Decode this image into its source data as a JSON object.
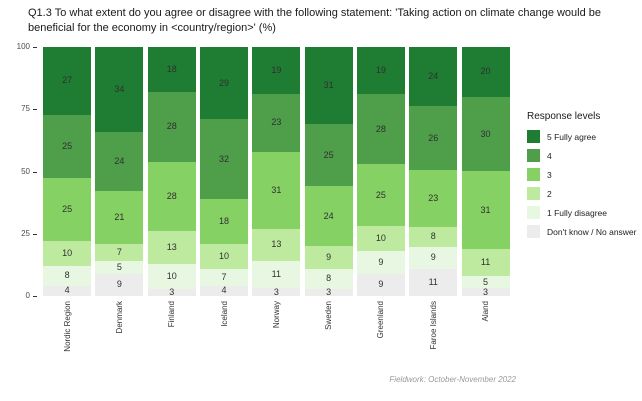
{
  "chart_data": {
    "type": "bar",
    "stacked": true,
    "title": "Q1.3 To what extent do you agree or disagree with the following statement: 'Taking action on climate change would be beneficial for the economy in <country/region>' (%)",
    "legend_title": "Response levels",
    "footnote": "Fieldwork: October-November 2022",
    "categories": [
      "Nordic Region",
      "Denmark",
      "Finland",
      "Iceland",
      "Norway",
      "Sweden",
      "Greenland",
      "Faroe Islands",
      "Aland"
    ],
    "series": [
      {
        "name": "5 Fully agree",
        "color": "#1f7d33",
        "values": [
          27,
          34,
          18,
          29,
          19,
          31,
          19,
          24,
          20
        ]
      },
      {
        "name": "4",
        "color": "#4f9e4a",
        "values": [
          25,
          24,
          28,
          32,
          23,
          25,
          28,
          26,
          30
        ]
      },
      {
        "name": "3",
        "color": "#85d163",
        "values": [
          25,
          21,
          28,
          18,
          31,
          24,
          25,
          23,
          31
        ]
      },
      {
        "name": "2",
        "color": "#bdea9f",
        "values": [
          10,
          7,
          13,
          10,
          13,
          9,
          10,
          8,
          11
        ]
      },
      {
        "name": "1 Fully disagree",
        "color": "#e8f7e2",
        "values": [
          8,
          5,
          10,
          7,
          11,
          8,
          9,
          9,
          5
        ]
      },
      {
        "name": "Don't know / No answer",
        "color": "#ececec",
        "values": [
          4,
          9,
          3,
          4,
          3,
          3,
          9,
          11,
          3
        ]
      }
    ],
    "ylabel": "",
    "xlabel": "",
    "ylim": [
      0,
      100
    ],
    "yticks": [
      0,
      25,
      50,
      75,
      100
    ],
    "grid": false,
    "legend_position": "right"
  }
}
